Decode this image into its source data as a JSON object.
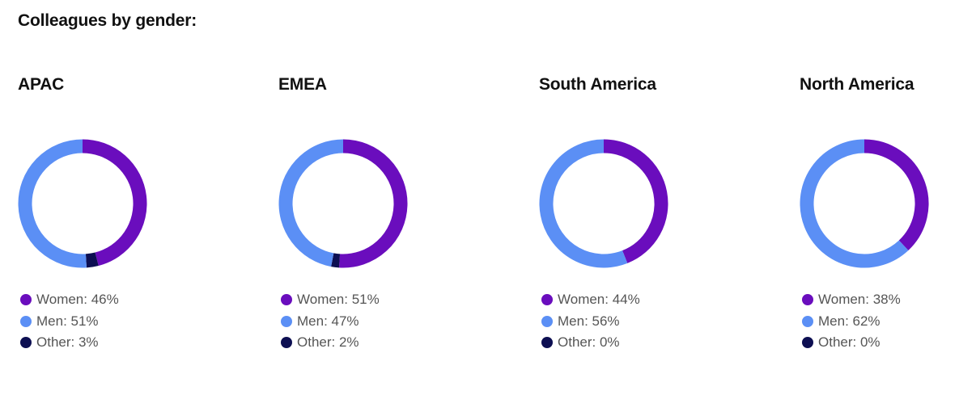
{
  "title": "Colleagues by gender:",
  "colors": {
    "women": "#6a0dbd",
    "men": "#5b8ff5",
    "other": "#0d0f52"
  },
  "chart_data": [
    {
      "type": "pie",
      "title": "APAC",
      "slices": [
        {
          "label": "Women",
          "value": 46,
          "text": "Women: 46%"
        },
        {
          "label": "Men",
          "value": 51,
          "text": "Men: 51%"
        },
        {
          "label": "Other",
          "value": 3,
          "text": "Other: 3%"
        }
      ]
    },
    {
      "type": "pie",
      "title": "EMEA",
      "slices": [
        {
          "label": "Women",
          "value": 51,
          "text": "Women: 51%"
        },
        {
          "label": "Men",
          "value": 47,
          "text": "Men: 47%"
        },
        {
          "label": "Other",
          "value": 2,
          "text": "Other: 2%"
        }
      ]
    },
    {
      "type": "pie",
      "title": "South America",
      "slices": [
        {
          "label": "Women",
          "value": 44,
          "text": "Women: 44%"
        },
        {
          "label": "Men",
          "value": 56,
          "text": "Men: 56%"
        },
        {
          "label": "Other",
          "value": 0,
          "text": "Other: 0%"
        }
      ]
    },
    {
      "type": "pie",
      "title": "North America",
      "slices": [
        {
          "label": "Women",
          "value": 38,
          "text": "Women: 38%"
        },
        {
          "label": "Men",
          "value": 62,
          "text": "Men: 62%"
        },
        {
          "label": "Other",
          "value": 0,
          "text": "Other: 0%"
        }
      ]
    }
  ]
}
